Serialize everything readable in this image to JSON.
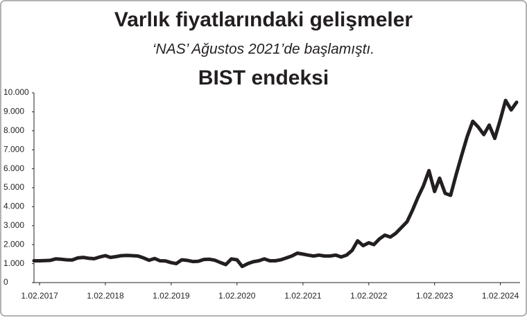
{
  "chart_data": {
    "type": "line",
    "title": "Varlık fiyatlarındaki gelişmeler",
    "subtitle": "‘NAS’ Ağustos 2021’de başlamıştı.",
    "label": "BIST endeksi",
    "color": "#231f20",
    "x": [
      "2017-01-01",
      "2017-02-01",
      "2017-03-01",
      "2017-04-01",
      "2017-05-01",
      "2017-06-01",
      "2017-07-01",
      "2017-08-01",
      "2017-09-01",
      "2017-10-01",
      "2017-11-01",
      "2017-12-01",
      "2018-01-01",
      "2018-02-01",
      "2018-03-01",
      "2018-04-01",
      "2018-05-01",
      "2018-06-01",
      "2018-07-01",
      "2018-08-01",
      "2018-09-01",
      "2018-10-01",
      "2018-11-01",
      "2018-12-01",
      "2019-01-01",
      "2019-02-01",
      "2019-03-01",
      "2019-04-01",
      "2019-05-01",
      "2019-06-01",
      "2019-07-01",
      "2019-08-01",
      "2019-09-01",
      "2019-10-01",
      "2019-11-01",
      "2019-12-01",
      "2020-01-01",
      "2020-02-01",
      "2020-03-01",
      "2020-04-01",
      "2020-05-01",
      "2020-06-01",
      "2020-07-01",
      "2020-08-01",
      "2020-09-01",
      "2020-10-01",
      "2020-11-01",
      "2020-12-01",
      "2021-01-01",
      "2021-02-01",
      "2021-03-01",
      "2021-04-01",
      "2021-05-01",
      "2021-06-01",
      "2021-07-01",
      "2021-08-01",
      "2021-09-01",
      "2021-10-01",
      "2021-11-01",
      "2021-12-01",
      "2022-01-01",
      "2022-02-01",
      "2022-03-01",
      "2022-04-01",
      "2022-05-01",
      "2022-06-01",
      "2022-07-01",
      "2022-08-01",
      "2022-09-01",
      "2022-10-01",
      "2022-11-01",
      "2022-12-01",
      "2023-01-01",
      "2023-02-01",
      "2023-03-01",
      "2023-04-01",
      "2023-05-01",
      "2023-06-01",
      "2023-07-01",
      "2023-08-01",
      "2023-09-01",
      "2023-10-01",
      "2023-11-01",
      "2023-12-01",
      "2024-01-01",
      "2024-02-01",
      "2024-03-01",
      "2024-04-01",
      "2024-05-01"
    ],
    "values": [
      1150,
      1150,
      1160,
      1170,
      1250,
      1230,
      1200,
      1190,
      1300,
      1330,
      1280,
      1260,
      1350,
      1420,
      1330,
      1370,
      1420,
      1430,
      1420,
      1400,
      1300,
      1180,
      1270,
      1150,
      1140,
      1050,
      1000,
      1200,
      1170,
      1110,
      1120,
      1220,
      1230,
      1180,
      1060,
      950,
      1250,
      1200,
      850,
      1000,
      1100,
      1150,
      1250,
      1150,
      1150,
      1200,
      1300,
      1400,
      1550,
      1500,
      1450,
      1400,
      1450,
      1400,
      1400,
      1450,
      1350,
      1450,
      1700,
      2200,
      1950,
      2100,
      2000,
      2300,
      2500,
      2400,
      2600,
      2900,
      3200,
      3800,
      4500,
      5100,
      5900,
      4800,
      5500,
      4700,
      4600,
      5700,
      6700,
      7700,
      8500,
      8200,
      7800,
      8300,
      7600,
      8600,
      9600,
      9100,
      9500
    ],
    "xlim": [
      "2017-01-01",
      "2024-05-01"
    ],
    "xticks": [
      {
        "value": "2017-02-01",
        "label": "1.02.2017"
      },
      {
        "value": "2018-02-01",
        "label": "1.02.2018"
      },
      {
        "value": "2019-02-01",
        "label": "1.02.2019"
      },
      {
        "value": "2020-02-01",
        "label": "1.02.2020"
      },
      {
        "value": "2021-02-01",
        "label": "1.02.2021"
      },
      {
        "value": "2022-02-01",
        "label": "1.02.2022"
      },
      {
        "value": "2023-02-01",
        "label": "1.02.2023"
      },
      {
        "value": "2024-02-01",
        "label": "1.02.2024"
      }
    ],
    "ylim": [
      0,
      10000
    ],
    "yticks": [
      0,
      {
        "value": 1000,
        "label": "1.000"
      },
      {
        "value": 2000,
        "label": "2.000"
      },
      {
        "value": 3000,
        "label": "3.000"
      },
      {
        "value": 4000,
        "label": "4.000"
      },
      {
        "value": 5000,
        "label": "5.000"
      },
      {
        "value": 6000,
        "label": "6.000"
      },
      {
        "value": 7000,
        "label": "7.000"
      },
      {
        "value": 8000,
        "label": "8.000"
      },
      {
        "value": 9000,
        "label": "9.000"
      },
      {
        "value": 10000,
        "label": "10.000"
      }
    ],
    "grid": false
  }
}
